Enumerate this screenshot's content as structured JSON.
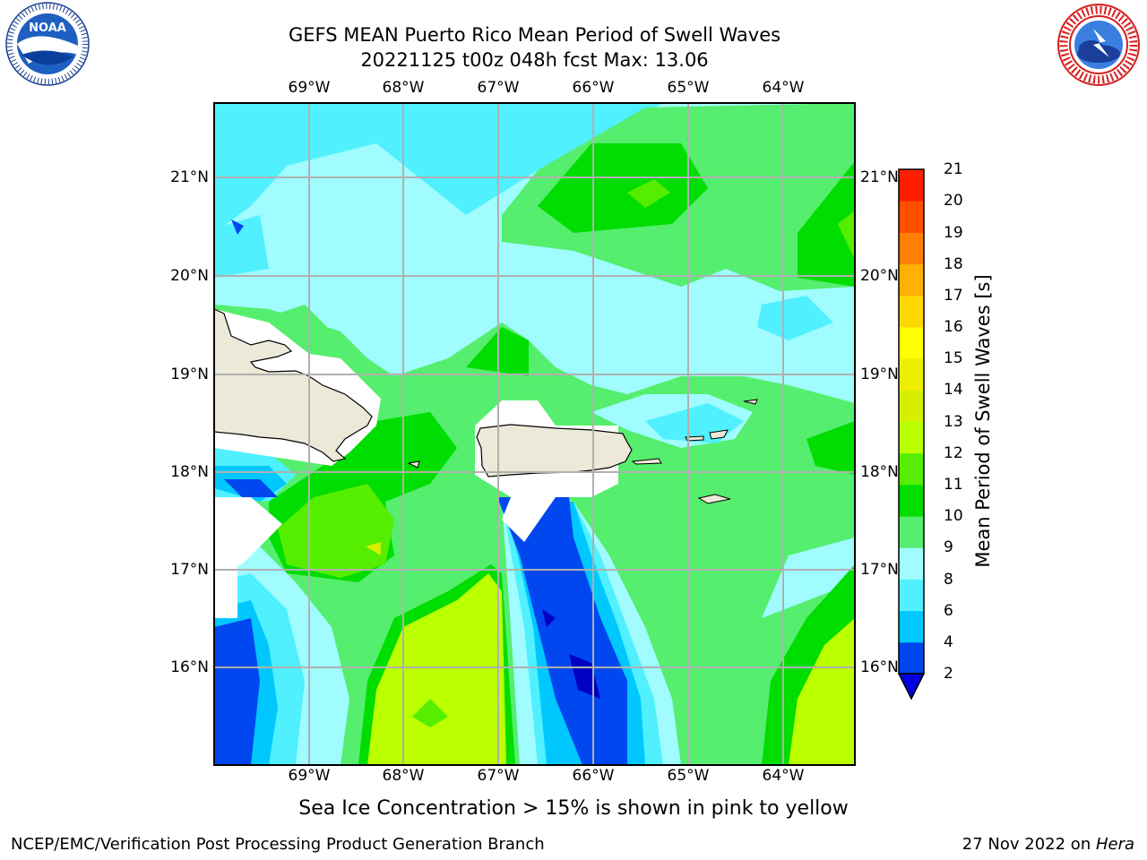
{
  "header": {
    "title_line1": "GEFS MEAN Puerto Rico Mean Period of Swell Waves",
    "title_line2": "20221125 t00z 048h fcst   Max: 13.06"
  },
  "map": {
    "lon_labels": [
      "69°W",
      "68°W",
      "67°W",
      "66°W",
      "65°W",
      "64°W"
    ],
    "lat_labels": [
      "21°N",
      "20°N",
      "19°N",
      "18°N",
      "17°N",
      "16°N"
    ],
    "land_color": "#ede9d8",
    "grid_color": "#b0b0b0"
  },
  "colorbar": {
    "label": "Mean Period of Swell Waves [s]",
    "ticks": [
      "2",
      "4",
      "6",
      "8",
      "9",
      "10",
      "11",
      "12",
      "13",
      "14",
      "15",
      "16",
      "17",
      "18",
      "19",
      "20",
      "21"
    ],
    "colors": [
      "#0047f0",
      "#00c8ff",
      "#50f0ff",
      "#a0fcff",
      "#55ee6e",
      "#00dd00",
      "#55ee00",
      "#bbff00",
      "#d4f000",
      "#eeee00",
      "#ffff00",
      "#ffd700",
      "#ffb000",
      "#ff8000",
      "#ff5000",
      "#ff1e00"
    ],
    "under_color": "#0000e0"
  },
  "note": "Sea Ice Concentration > 15% is shown in pink to yellow",
  "footer": {
    "left": "NCEP/EMC/Verification Post Processing Product Generation Branch",
    "right_prefix": "27 Nov 2022 on ",
    "right_host": "Hera"
  },
  "logos": {
    "left": "noaa-logo",
    "right": "nws-logo"
  }
}
